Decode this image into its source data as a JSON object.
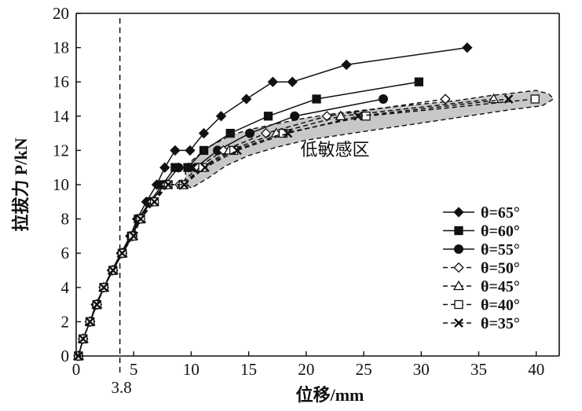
{
  "chart_data": {
    "type": "line",
    "title": "",
    "xlabel": "位移/mm",
    "ylabel": "拉拔力 P/kN",
    "xlim": [
      0,
      42
    ],
    "ylim": [
      0,
      20
    ],
    "xticks": [
      0,
      5,
      10,
      15,
      20,
      25,
      30,
      35,
      40
    ],
    "yticks": [
      0,
      2,
      4,
      6,
      8,
      10,
      12,
      14,
      16,
      18,
      20
    ],
    "legend_position": "bottom-right",
    "grid": false,
    "reference_line": {
      "x": 3.8,
      "label": "3.8",
      "style": "dashed"
    },
    "annotation": {
      "text": "低敏感区",
      "x": 22.5,
      "y": 11.7
    },
    "band": {
      "label": "low-sensitivity region",
      "upper": [
        [
          9.5,
          11.1
        ],
        [
          11.5,
          12.2
        ],
        [
          13.5,
          12.9
        ],
        [
          15,
          13.2
        ],
        [
          17,
          13.5
        ],
        [
          20,
          13.9
        ],
        [
          23,
          14.2
        ],
        [
          27,
          14.5
        ],
        [
          30,
          14.7
        ],
        [
          33,
          14.9
        ],
        [
          36,
          15.2
        ],
        [
          38,
          15.35
        ],
        [
          40,
          15.5
        ],
        [
          41.1,
          15.3
        ],
        [
          41.5,
          15.0
        ]
      ],
      "lower": [
        [
          41.5,
          15.0
        ],
        [
          40.5,
          14.6
        ],
        [
          38,
          14.4
        ],
        [
          35,
          14.1
        ],
        [
          32,
          13.8
        ],
        [
          29,
          13.5
        ],
        [
          26,
          13.2
        ],
        [
          23,
          12.9
        ],
        [
          20,
          12.6
        ],
        [
          17.5,
          12.2
        ],
        [
          15,
          11.7
        ],
        [
          13,
          11.1
        ],
        [
          11.5,
          10.4
        ],
        [
          10,
          9.8
        ],
        [
          9.5,
          10.1
        ]
      ]
    },
    "series": [
      {
        "name": "θ=65°",
        "marker": "diamond-filled",
        "line": "solid",
        "x": [
          0.2,
          0.6,
          1.2,
          1.7,
          2.4,
          3.1,
          3.9,
          4.7,
          5.3,
          6.1,
          7.0,
          7.7,
          8.6,
          9.9,
          11.1,
          12.6,
          14.8,
          17.1,
          18.8,
          23.5,
          34.0
        ],
        "y": [
          0,
          1,
          2,
          3,
          4,
          5,
          6,
          7,
          8,
          9,
          10,
          11,
          12,
          12,
          13,
          14,
          15,
          16,
          16,
          17,
          18
        ]
      },
      {
        "name": "θ=60°",
        "marker": "square-filled",
        "line": "solid",
        "x": [
          0.2,
          0.6,
          1.2,
          1.8,
          2.4,
          3.2,
          4.0,
          4.8,
          5.4,
          6.4,
          7.5,
          8.6,
          9.7,
          11.1,
          13.4,
          16.7,
          20.9,
          29.8
        ],
        "y": [
          0,
          1,
          2,
          3,
          4,
          5,
          6,
          7,
          8,
          9,
          10,
          11,
          11,
          12,
          13,
          14,
          15,
          16
        ]
      },
      {
        "name": "θ=55°",
        "marker": "circle-filled",
        "line": "solid",
        "x": [
          0.2,
          0.6,
          1.2,
          1.8,
          2.4,
          3.2,
          4.0,
          4.9,
          5.5,
          6.5,
          7.7,
          8.9,
          10.4,
          12.3,
          15.1,
          19.0,
          26.7
        ],
        "y": [
          0,
          1,
          2,
          3,
          4,
          5,
          6,
          7,
          8,
          9,
          10,
          11,
          11,
          12,
          13,
          14,
          15
        ]
      },
      {
        "name": "θ=50°",
        "marker": "diamond-open",
        "line": "dashed",
        "x": [
          0.2,
          0.6,
          1.2,
          1.8,
          2.4,
          3.2,
          4.0,
          4.9,
          5.5,
          6.6,
          7.8,
          9.0,
          10.6,
          12.8,
          16.5,
          21.8,
          32.1
        ],
        "y": [
          0,
          1,
          2,
          3,
          4,
          5,
          6,
          7,
          8,
          9,
          10,
          10,
          11,
          12,
          13,
          14,
          15
        ]
      },
      {
        "name": "θ=45°",
        "marker": "triangle-open",
        "line": "dashed",
        "x": [
          0.2,
          0.6,
          1.2,
          1.8,
          2.4,
          3.2,
          4.0,
          4.9,
          5.6,
          6.7,
          7.9,
          9.2,
          10.9,
          13.3,
          17.4,
          23.0,
          36.3
        ],
        "y": [
          0,
          1,
          2,
          3,
          4,
          5,
          6,
          7,
          8,
          9,
          10,
          10,
          11,
          12,
          13,
          14,
          15
        ]
      },
      {
        "name": "θ=40°",
        "marker": "square-open",
        "line": "dashed",
        "x": [
          0.2,
          0.6,
          1.2,
          1.8,
          2.4,
          3.2,
          4.0,
          4.9,
          5.6,
          6.8,
          8.0,
          9.3,
          11.0,
          13.7,
          18.0,
          25.2,
          39.9
        ],
        "y": [
          0,
          1,
          2,
          3,
          4,
          5,
          6,
          7,
          8,
          9,
          10,
          10,
          11,
          12,
          13,
          14,
          15
        ]
      },
      {
        "name": "θ=35°",
        "marker": "cross",
        "line": "dashed",
        "x": [
          0.2,
          0.6,
          1.2,
          1.8,
          2.4,
          3.2,
          4.0,
          5.0,
          5.6,
          6.8,
          8.0,
          9.4,
          11.2,
          14.0,
          18.4,
          24.5,
          37.6
        ],
        "y": [
          0,
          1,
          2,
          3,
          4,
          5,
          6,
          7,
          8,
          9,
          10,
          10,
          11,
          12,
          13,
          14,
          15
        ]
      }
    ]
  }
}
